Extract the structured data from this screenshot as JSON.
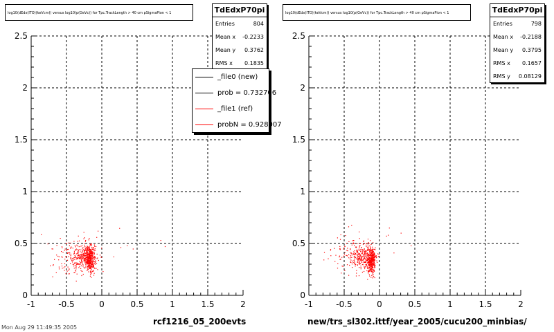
{
  "panels": [
    {
      "title": "log10(dEdx(lTO)(keVcm)) versus log10(p(GeVc)) for Tpc.TrackLength > 40 cm pSigmaPion < 1",
      "stats": {
        "name": "TdEdxP70pi",
        "rows": [
          {
            "label": "Entries",
            "value": "804"
          },
          {
            "label": "Mean x",
            "value": "-0.2233"
          },
          {
            "label": "Mean y",
            "value": "0.3762"
          },
          {
            "label": "RMS x",
            "value": "0.1835"
          }
        ]
      },
      "subtitle": "rcf1216_05_200evts",
      "legend": [
        {
          "label": "_file0 (new)",
          "color": "#000000"
        },
        {
          "label": "prob = 0.732706",
          "color": "#000000"
        },
        {
          "label": "_file1 (ref)",
          "color": "#ff0000"
        },
        {
          "label": "probN = 0.928007",
          "color": "#ff0000"
        }
      ]
    },
    {
      "title": "log10(dEdx(lTO)(keVcm)) versus log10(p(GeVc)) for Tpc.TrackLength > 40 cm pSigmaPion < 1",
      "stats": {
        "name": "TdEdxP70pi",
        "rows": [
          {
            "label": "Entries",
            "value": "798"
          },
          {
            "label": "Mean x",
            "value": "-0.2188"
          },
          {
            "label": "Mean y",
            "value": "0.3795"
          },
          {
            "label": "RMS x",
            "value": "0.1657"
          },
          {
            "label": "RMS y",
            "value": "0.08129"
          }
        ]
      },
      "subtitle": "new/trs_sl302.ittf/year_2005/cucu200_minbias/"
    }
  ],
  "footer": "Mon Aug 29 11:49:35 2005",
  "chart_data": [
    {
      "type": "scatter",
      "series": [
        {
          "color": "#ff0000",
          "clusters": [
            {
              "cx": -0.17,
              "cy": 0.36,
              "sx": 0.035,
              "sy": 0.06,
              "n": 360
            },
            {
              "cx": -0.28,
              "cy": 0.38,
              "sx": 0.1,
              "sy": 0.07,
              "n": 260
            },
            {
              "cx": -0.45,
              "cy": 0.35,
              "sx": 0.18,
              "sy": 0.1,
              "n": 80
            },
            {
              "cx": 0.1,
              "cy": 0.5,
              "sx": 0.45,
              "sy": 0.12,
              "n": 14
            }
          ]
        }
      ],
      "xlim": [
        -1,
        2
      ],
      "ylim": [
        0,
        2.5
      ],
      "x_ticks": [
        "-1",
        "-0.5",
        "0",
        "0.5",
        "1",
        "1.5",
        "2"
      ],
      "y_ticks": [
        "0",
        "0.5",
        "1",
        "1.5",
        "2",
        "2.5"
      ],
      "grid": true
    },
    {
      "type": "scatter",
      "series": [
        {
          "color": "#ff0000",
          "clusters": [
            {
              "cx": -0.12,
              "cy": 0.33,
              "sx": 0.03,
              "sy": 0.06,
              "n": 360
            },
            {
              "cx": -0.25,
              "cy": 0.38,
              "sx": 0.09,
              "sy": 0.07,
              "n": 260
            },
            {
              "cx": -0.45,
              "cy": 0.37,
              "sx": 0.18,
              "sy": 0.1,
              "n": 80
            },
            {
              "cx": 0.1,
              "cy": 0.55,
              "sx": 0.4,
              "sy": 0.12,
              "n": 10
            }
          ]
        }
      ],
      "xlim": [
        -1,
        2
      ],
      "ylim": [
        0,
        2.5
      ],
      "x_ticks": [
        "-1",
        "-0.5",
        "0",
        "0.5",
        "1",
        "1.5",
        "2"
      ],
      "y_ticks": [
        "0",
        "0.5",
        "1",
        "1.5",
        "2",
        "2.5"
      ],
      "grid": true
    }
  ]
}
